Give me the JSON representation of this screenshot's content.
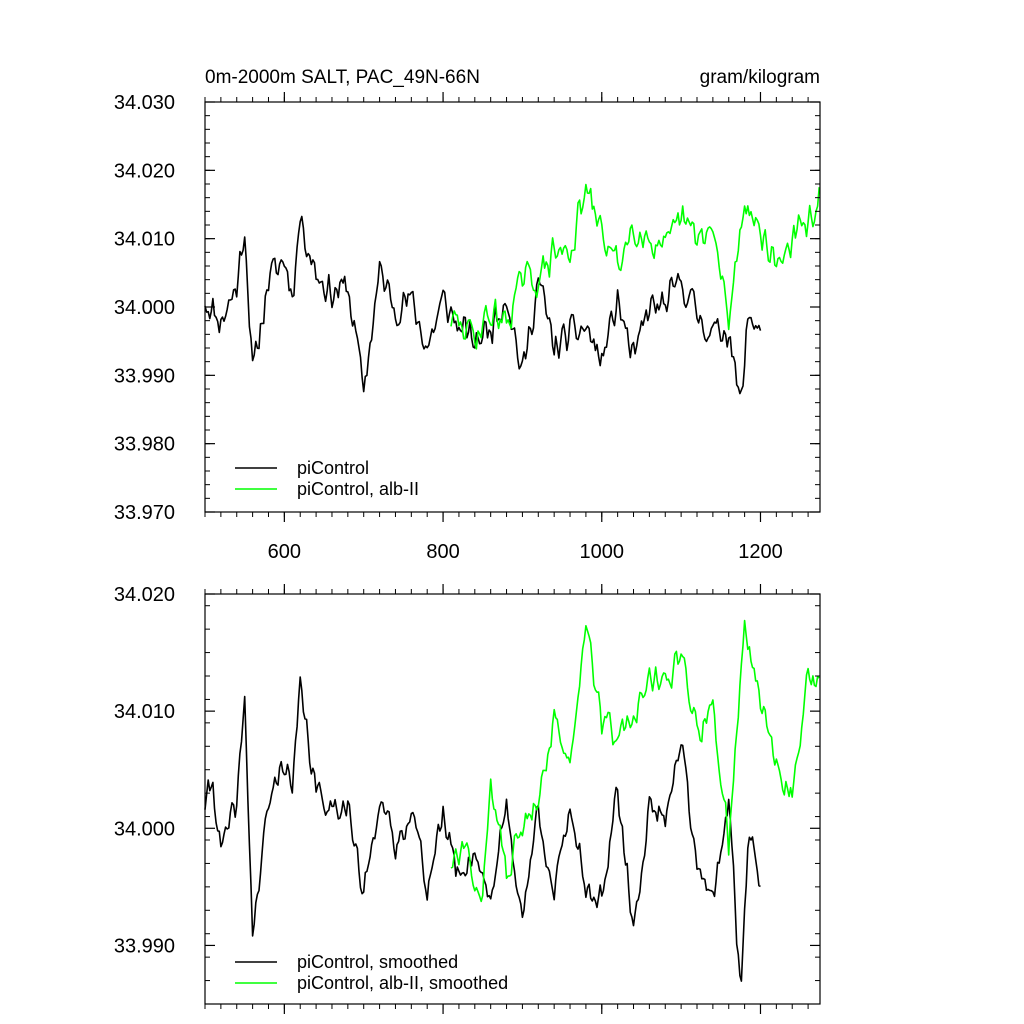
{
  "chart_data": [
    {
      "type": "line",
      "title_left": "0m-2000m SALT, PAC_49N-66N",
      "title_right": "gram/kilogram",
      "xlim": [
        500,
        1275
      ],
      "ylim": [
        33.97,
        34.03
      ],
      "xticks": [
        600,
        800,
        1000,
        1200
      ],
      "xtick_labels": [
        "600",
        "800",
        "1000",
        "1200"
      ],
      "yticks": [
        33.97,
        33.98,
        33.99,
        34.0,
        34.01,
        34.02,
        34.03
      ],
      "ytick_labels": [
        "33.970",
        "33.980",
        "33.990",
        "34.000",
        "34.010",
        "34.020",
        "34.030"
      ],
      "legend": [
        {
          "label": "piControl",
          "color": "#000000"
        },
        {
          "label": "piControl, alb-II",
          "color": "#00ff00"
        }
      ],
      "series": [
        {
          "name": "piControl",
          "color": "#000000",
          "x_start": 500,
          "x_end": 1200,
          "anchors": [
            [
              500,
              34.001
            ],
            [
              520,
              33.998
            ],
            [
              540,
              34.003
            ],
            [
              550,
              34.012
            ],
            [
              560,
              33.99
            ],
            [
              580,
              34.004
            ],
            [
              600,
              34.007
            ],
            [
              610,
              34.002
            ],
            [
              620,
              34.013
            ],
            [
              640,
              34.005
            ],
            [
              660,
              34.002
            ],
            [
              680,
              34.003
            ],
            [
              700,
              33.988
            ],
            [
              720,
              34.005
            ],
            [
              740,
              34.0
            ],
            [
              760,
              34.001
            ],
            [
              780,
              33.994
            ],
            [
              800,
              34.001
            ],
            [
              820,
              33.997
            ],
            [
              840,
              33.995
            ],
            [
              860,
              33.997
            ],
            [
              880,
              34.002
            ],
            [
              900,
              33.99
            ],
            [
              920,
              34.004
            ],
            [
              940,
              33.994
            ],
            [
              960,
              33.996
            ],
            [
              980,
              33.997
            ],
            [
              1000,
              33.992
            ],
            [
              1020,
              34.001
            ],
            [
              1040,
              33.992
            ],
            [
              1060,
              34.0
            ],
            [
              1080,
              34.0
            ],
            [
              1100,
              34.004
            ],
            [
              1120,
              33.999
            ],
            [
              1140,
              33.996
            ],
            [
              1160,
              33.997
            ],
            [
              1175,
              33.985
            ],
            [
              1185,
              33.999
            ],
            [
              1200,
              33.997
            ]
          ],
          "noise": 0.006,
          "seed": 11
        },
        {
          "name": "piControl, alb-II",
          "color": "#00ff00",
          "x_start": 810,
          "x_end": 1275,
          "anchors": [
            [
              810,
              33.998
            ],
            [
              840,
              33.996
            ],
            [
              860,
              33.999
            ],
            [
              880,
              33.998
            ],
            [
              900,
              34.004
            ],
            [
              920,
              34.004
            ],
            [
              940,
              34.008
            ],
            [
              960,
              34.008
            ],
            [
              980,
              34.017
            ],
            [
              1000,
              34.011
            ],
            [
              1020,
              34.006
            ],
            [
              1040,
              34.012
            ],
            [
              1060,
              34.01
            ],
            [
              1080,
              34.008
            ],
            [
              1100,
              34.013
            ],
            [
              1120,
              34.01
            ],
            [
              1140,
              34.011
            ],
            [
              1160,
              33.998
            ],
            [
              1180,
              34.016
            ],
            [
              1200,
              34.011
            ],
            [
              1220,
              34.006
            ],
            [
              1240,
              34.01
            ],
            [
              1260,
              34.012
            ],
            [
              1275,
              34.017
            ]
          ],
          "noise": 0.006,
          "seed": 29
        }
      ]
    },
    {
      "type": "line",
      "xlim": [
        500,
        1275
      ],
      "ylim": [
        33.985,
        34.02
      ],
      "xticks": [
        600,
        800,
        1000,
        1200
      ],
      "yticks": [
        33.99,
        34.0,
        34.01,
        34.02
      ],
      "ytick_labels": [
        "33.990",
        "34.000",
        "34.010",
        "34.020"
      ],
      "legend": [
        {
          "label": "piControl, smoothed",
          "color": "#000000"
        },
        {
          "label": "piControl, alb-II, smoothed",
          "color": "#00ff00"
        }
      ],
      "series": [
        {
          "name": "piControl, smoothed",
          "color": "#000000",
          "x_start": 500,
          "x_end": 1200,
          "anchors": [
            [
              500,
              34.002
            ],
            [
              510,
              34.004
            ],
            [
              520,
              33.998
            ],
            [
              540,
              34.002
            ],
            [
              550,
              34.011
            ],
            [
              560,
              33.991
            ],
            [
              580,
              34.002
            ],
            [
              600,
              34.006
            ],
            [
              610,
              34.003
            ],
            [
              620,
              34.012
            ],
            [
              640,
              34.003
            ],
            [
              660,
              34.002
            ],
            [
              680,
              34.002
            ],
            [
              700,
              33.994
            ],
            [
              720,
              34.003
            ],
            [
              740,
              33.998
            ],
            [
              760,
              34.002
            ],
            [
              780,
              33.995
            ],
            [
              800,
              34.001
            ],
            [
              820,
              33.996
            ],
            [
              840,
              33.998
            ],
            [
              860,
              33.994
            ],
            [
              880,
              34.002
            ],
            [
              900,
              33.992
            ],
            [
              920,
              34.002
            ],
            [
              940,
              33.994
            ],
            [
              960,
              34.002
            ],
            [
              980,
              33.995
            ],
            [
              1000,
              33.994
            ],
            [
              1020,
              34.003
            ],
            [
              1040,
              33.991
            ],
            [
              1060,
              34.002
            ],
            [
              1080,
              34.001
            ],
            [
              1100,
              34.008
            ],
            [
              1120,
              33.996
            ],
            [
              1140,
              33.994
            ],
            [
              1160,
              34.002
            ],
            [
              1175,
              33.986
            ],
            [
              1185,
              34.0
            ],
            [
              1200,
              33.995
            ]
          ],
          "noise": 0.003,
          "seed": 41
        },
        {
          "name": "piControl, alb-II, smoothed",
          "color": "#00ff00",
          "x_start": 810,
          "x_end": 1275,
          "anchors": [
            [
              810,
              33.997
            ],
            [
              830,
              33.998
            ],
            [
              850,
              33.994
            ],
            [
              860,
              34.004
            ],
            [
              880,
              33.996
            ],
            [
              900,
              34.0
            ],
            [
              920,
              34.003
            ],
            [
              940,
              34.009
            ],
            [
              960,
              34.006
            ],
            [
              980,
              34.018
            ],
            [
              1000,
              34.009
            ],
            [
              1020,
              34.008
            ],
            [
              1040,
              34.009
            ],
            [
              1060,
              34.013
            ],
            [
              1080,
              34.012
            ],
            [
              1100,
              34.015
            ],
            [
              1120,
              34.008
            ],
            [
              1140,
              34.01
            ],
            [
              1160,
              33.999
            ],
            [
              1180,
              34.017
            ],
            [
              1200,
              34.011
            ],
            [
              1220,
              34.005
            ],
            [
              1240,
              34.003
            ],
            [
              1260,
              34.013
            ],
            [
              1275,
              34.012
            ]
          ],
          "noise": 0.003,
          "seed": 57
        }
      ]
    }
  ]
}
